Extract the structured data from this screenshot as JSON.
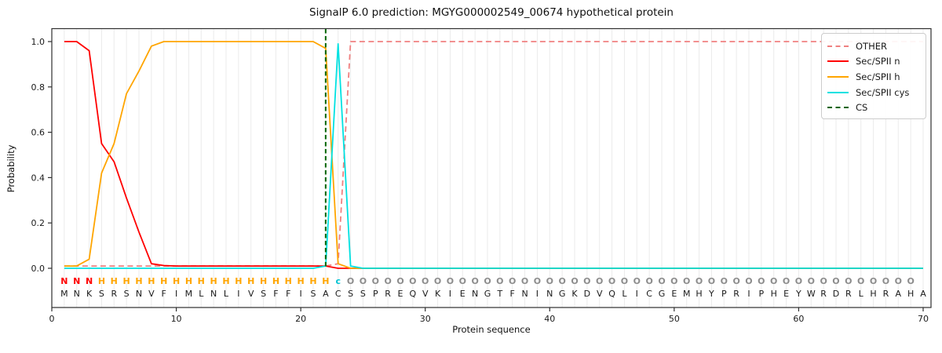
{
  "title": "SignalP 6.0 prediction: MGYG000002549_00674 hypothetical protein",
  "axes": {
    "x_label": "Protein sequence",
    "y_label": "Probability",
    "x_ticks": [
      0,
      10,
      20,
      30,
      40,
      50,
      60,
      70
    ],
    "y_ticks": [
      "0.0",
      "0.2",
      "0.4",
      "0.6",
      "0.8",
      "1.0"
    ]
  },
  "legend": {
    "items": [
      {
        "label": "OTHER",
        "color": "#f08080",
        "dash": true
      },
      {
        "label": "Sec/SPII n",
        "color": "#ff0000",
        "dash": false
      },
      {
        "label": "Sec/SPII h",
        "color": "#ffa500",
        "dash": false
      },
      {
        "label": "Sec/SPII cys",
        "color": "#00e1e1",
        "dash": false
      },
      {
        "label": "CS",
        "color": "#006400",
        "dash": true
      }
    ]
  },
  "sequence": {
    "residues": "MNKSRSNVFIMLNLIVSFFISACSSPREQVKIENGTFNINGKDVQLICGEMHYPRIPHEYWRDRLHRAHA",
    "region_labels": "NNNHHHHHHHHHHHHHHHHHHHcOOOOOOOOOOOOOOOOOOOOOOOOOOOOOOOOOOOOOOOOOOOOOO",
    "region_colors": {
      "N": "#ff0000",
      "H": "#ffa500",
      "c": "#00c4d4",
      "O": "#8c8c8c"
    },
    "residue_color": "#1a1a1a"
  },
  "chart_data": {
    "type": "line",
    "title": "SignalP 6.0 prediction: MGYG000002549_00674 hypothetical protein",
    "xlabel": "Protein sequence",
    "ylabel": "Probability",
    "xlim": [
      0,
      70.6
    ],
    "ylim": [
      -0.17,
      1.06
    ],
    "grid": "vertical gridline at each residue position 1-70",
    "legend_position": "upper right",
    "x_start": 1,
    "series": [
      {
        "name": "OTHER",
        "color": "#f08080",
        "dash": true,
        "values": [
          0.01,
          0.01,
          0.01,
          0.01,
          0.01,
          0.01,
          0.01,
          0.01,
          0.01,
          0.01,
          0.01,
          0.01,
          0.01,
          0.01,
          0.01,
          0.01,
          0.01,
          0.01,
          0.01,
          0.01,
          0.01,
          0.01,
          0.02,
          1,
          1,
          1,
          1,
          1,
          1,
          1,
          1,
          1,
          1,
          1,
          1,
          1,
          1,
          1,
          1,
          1,
          1,
          1,
          1,
          1,
          1,
          1,
          1,
          1,
          1,
          1,
          1,
          1,
          1,
          1,
          1,
          1,
          1,
          1,
          1,
          1,
          1,
          1,
          1,
          1,
          1,
          1,
          1,
          1,
          1,
          1
        ]
      },
      {
        "name": "Sec/SPII n",
        "color": "#ff0000",
        "dash": false,
        "values": [
          1,
          1,
          0.96,
          0.55,
          0.47,
          0.31,
          0.16,
          0.02,
          0.012,
          0.01,
          0.01,
          0.01,
          0.01,
          0.01,
          0.01,
          0.01,
          0.01,
          0.01,
          0.01,
          0.01,
          0.01,
          0.01,
          0,
          0,
          0,
          0,
          0,
          0,
          0,
          0,
          0,
          0,
          0,
          0,
          0,
          0,
          0,
          0,
          0,
          0,
          0,
          0,
          0,
          0,
          0,
          0,
          0,
          0,
          0,
          0,
          0,
          0,
          0,
          0,
          0,
          0,
          0,
          0,
          0,
          0,
          0,
          0,
          0,
          0,
          0,
          0,
          0,
          0,
          0,
          0
        ]
      },
      {
        "name": "Sec/SPII h",
        "color": "#ffa500",
        "dash": false,
        "values": [
          0.01,
          0.01,
          0.04,
          0.42,
          0.55,
          0.77,
          0.87,
          0.98,
          1,
          1,
          1,
          1,
          1,
          1,
          1,
          1,
          1,
          1,
          1,
          1,
          1,
          0.97,
          0.02,
          0,
          0,
          0,
          0,
          0,
          0,
          0,
          0,
          0,
          0,
          0,
          0,
          0,
          0,
          0,
          0,
          0,
          0,
          0,
          0,
          0,
          0,
          0,
          0,
          0,
          0,
          0,
          0,
          0,
          0,
          0,
          0,
          0,
          0,
          0,
          0,
          0,
          0,
          0,
          0,
          0,
          0,
          0,
          0,
          0,
          0,
          0
        ]
      },
      {
        "name": "Sec/SPII cys",
        "color": "#00e1e1",
        "dash": false,
        "values": [
          0,
          0,
          0,
          0,
          0,
          0,
          0,
          0,
          0,
          0,
          0,
          0,
          0,
          0,
          0,
          0,
          0,
          0,
          0,
          0,
          0,
          0.01,
          0.99,
          0.01,
          0,
          0,
          0,
          0,
          0,
          0,
          0,
          0,
          0,
          0,
          0,
          0,
          0,
          0,
          0,
          0,
          0,
          0,
          0,
          0,
          0,
          0,
          0,
          0,
          0,
          0,
          0,
          0,
          0,
          0,
          0,
          0,
          0,
          0,
          0,
          0,
          0,
          0,
          0,
          0,
          0,
          0,
          0,
          0,
          0,
          0
        ]
      },
      {
        "name": "CS",
        "color": "#006400",
        "dash": true,
        "values": null,
        "note": "vertical cleavage-site marker line"
      }
    ],
    "cs_line": {
      "x": 22,
      "color": "#006400"
    }
  }
}
